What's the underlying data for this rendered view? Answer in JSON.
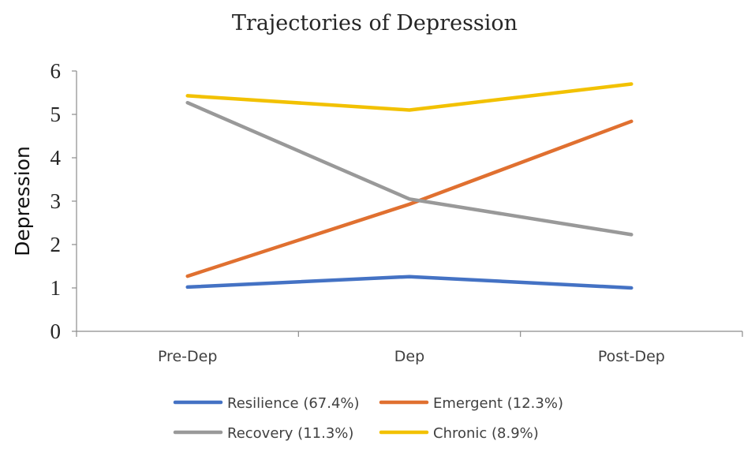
{
  "chart_data": {
    "type": "line",
    "title": "Trajectories of Depression",
    "xlabel": "",
    "ylabel": "Depression",
    "categories": [
      "Pre-Dep",
      "Dep",
      "Post-Dep"
    ],
    "ylim": [
      0,
      6
    ],
    "yticks": [
      "0",
      "1",
      "2",
      "3",
      "4",
      "5",
      "6"
    ],
    "grid": false,
    "legend_position": "bottom",
    "series": [
      {
        "name": "Resilience (67.4%)",
        "color": "#4472C4",
        "values": [
          1.02,
          1.26,
          1.0
        ]
      },
      {
        "name": "Emergent (12.3%)",
        "color": "#E07030",
        "values": [
          1.27,
          2.93,
          4.84
        ]
      },
      {
        "name": "Recovery (11.3%)",
        "color": "#999999",
        "values": [
          5.27,
          3.05,
          2.23
        ]
      },
      {
        "name": "Chronic (8.9%)",
        "color": "#F2C100",
        "values": [
          5.43,
          5.1,
          5.7
        ]
      }
    ]
  }
}
